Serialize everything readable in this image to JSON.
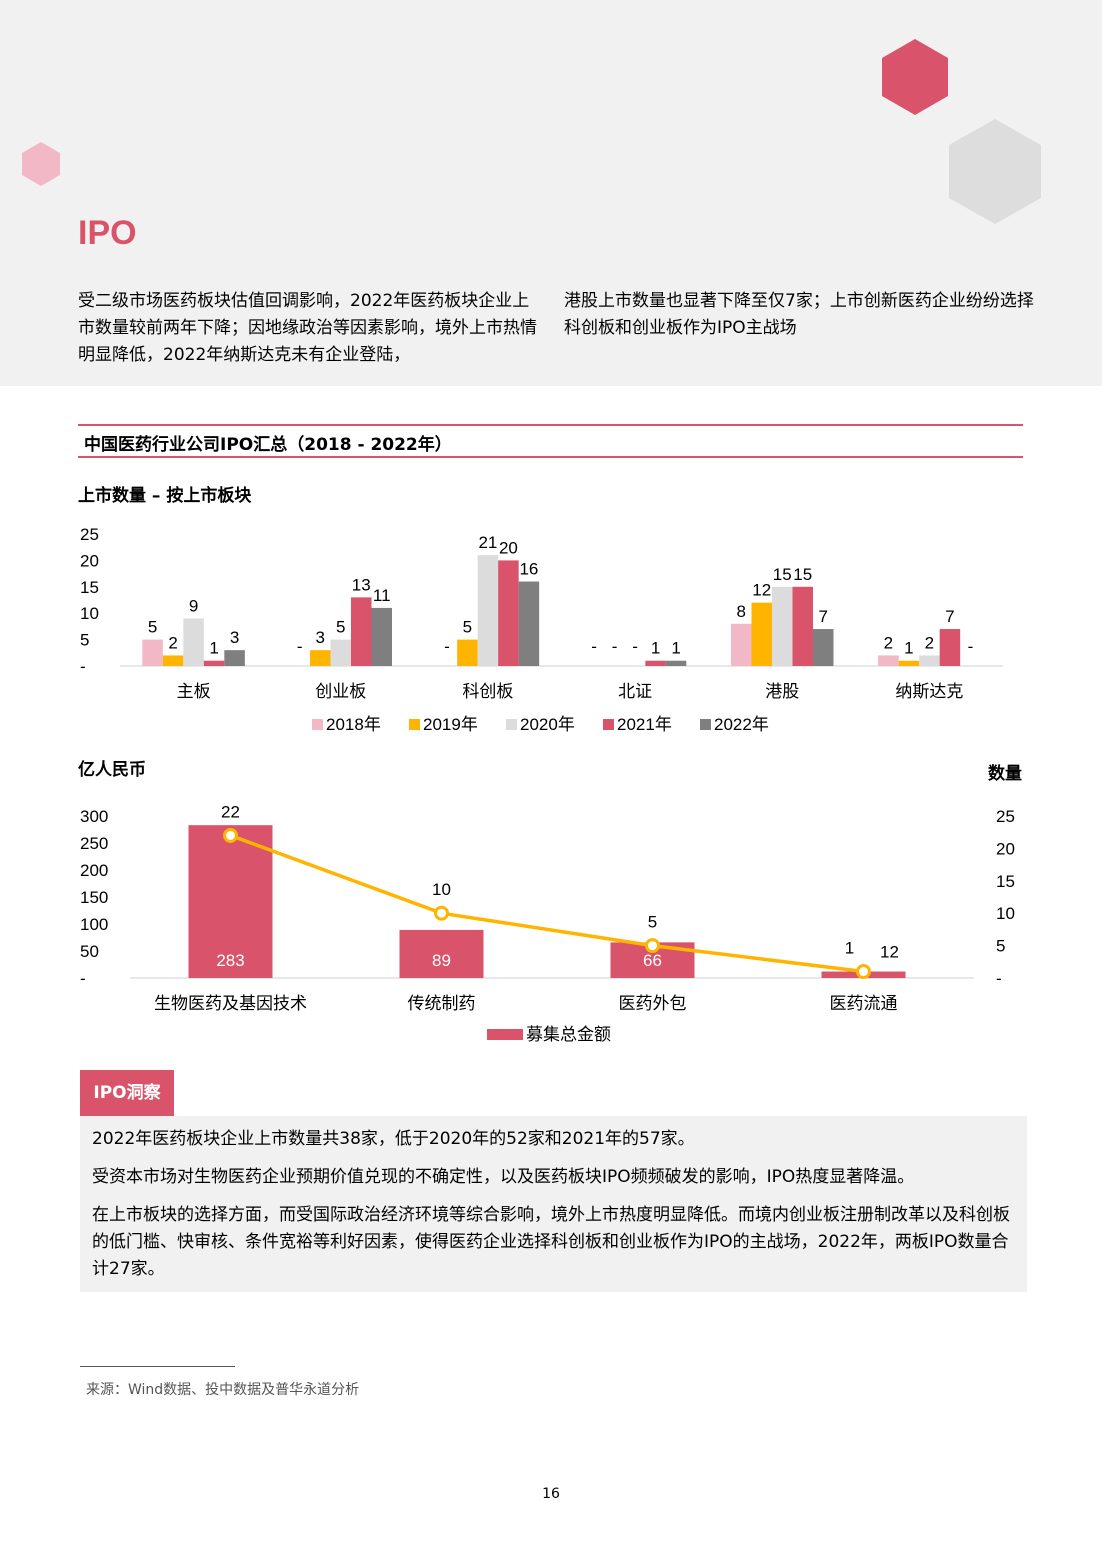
{
  "header": {
    "title": "IPO",
    "intro_left": "受二级市场医药板块估值回调影响，2022年医药板块企业上市数量较前两年下降；因地缘政治等因素影响，境外上市热情明显降低，2022年纳斯达克未有企业登陆，",
    "intro_right": "港股上市数量也显著下降至仅7家；上市创新医药企业纷纷选择科创板和创业板作为IPO主战场"
  },
  "section": {
    "title": "中国医药行业公司IPO汇总（2018 - 2022年）"
  },
  "colors": {
    "accent": "#d9536b",
    "y2018": "#f2b8c6",
    "y2019": "#ffb400",
    "y2020": "#dcdcdc",
    "y2021": "#d9536b",
    "y2022": "#7f7f7f",
    "line": "#ffb400"
  },
  "chart_data": [
    {
      "type": "bar",
      "title": "上市数量 – 按上市板块",
      "categories": [
        "主板",
        "创业板",
        "科创板",
        "北证",
        "港股",
        "纳斯达克"
      ],
      "y_ticks": [
        "25",
        "20",
        "15",
        "10",
        "5",
        "-"
      ],
      "ylim": [
        0,
        25
      ],
      "legend_position": "bottom",
      "series": [
        {
          "name": "2018年",
          "values": [
            5,
            null,
            null,
            null,
            8,
            2
          ],
          "labels": [
            "5",
            "-",
            "-",
            "-",
            "8",
            "2"
          ]
        },
        {
          "name": "2019年",
          "values": [
            2,
            3,
            5,
            null,
            12,
            1
          ],
          "labels": [
            "2",
            "3",
            "5",
            "-",
            "12",
            "1"
          ]
        },
        {
          "name": "2020年",
          "values": [
            9,
            5,
            21,
            null,
            15,
            2
          ],
          "labels": [
            "9",
            "5",
            "21",
            "-",
            "15",
            "2"
          ]
        },
        {
          "name": "2021年",
          "values": [
            1,
            13,
            20,
            1,
            15,
            7
          ],
          "labels": [
            "1",
            "13",
            "20",
            "1",
            "15",
            "7"
          ]
        },
        {
          "name": "2022年",
          "values": [
            3,
            11,
            16,
            1,
            7,
            null
          ],
          "labels": [
            "3",
            "11",
            "16",
            "1",
            "7",
            "-"
          ]
        }
      ]
    },
    {
      "type": "bar",
      "ylabel": "亿人民币",
      "y2label": "数量",
      "categories": [
        "生物医药及基因技术",
        "传统制药",
        "医药外包",
        "医药流通"
      ],
      "y_ticks": [
        "300",
        "250",
        "200",
        "150",
        "100",
        "50",
        "-"
      ],
      "y2_ticks": [
        "25",
        "20",
        "15",
        "10",
        "5",
        "-"
      ],
      "ylim": [
        0,
        300
      ],
      "y2lim": [
        0,
        25
      ],
      "legend_position": "bottom",
      "series": [
        {
          "name": "募集总金额",
          "type": "bar",
          "axis": "left",
          "values": [
            283,
            89,
            66,
            12
          ],
          "labels": [
            "283",
            "89",
            "66",
            "12"
          ]
        },
        {
          "type": "line",
          "axis": "right",
          "values": [
            22,
            10,
            5,
            1
          ],
          "labels": [
            "22",
            "10",
            "5",
            "1"
          ]
        }
      ]
    }
  ],
  "insight": {
    "tag": "IPO洞察",
    "p1": "2022年医药板块企业上市数量共38家，低于2020年的52家和2021年的57家。",
    "p2": "受资本市场对生物医药企业预期价值兑现的不确定性，以及医药板块IPO频频破发的影响，IPO热度显著降温。",
    "p3": "在上市板块的选择方面，而受国际政治经济环境等综合影响，境外上市热度明显降低。而境内创业板注册制改革以及科创板的低门槛、快审核、条件宽裕等利好因素，使得医药企业选择科创板和创业板作为IPO的主战场，2022年，两板IPO数量合计27家。"
  },
  "footer": {
    "source": "来源：Wind数据、投中数据及普华永道分析",
    "page_number": "16"
  }
}
